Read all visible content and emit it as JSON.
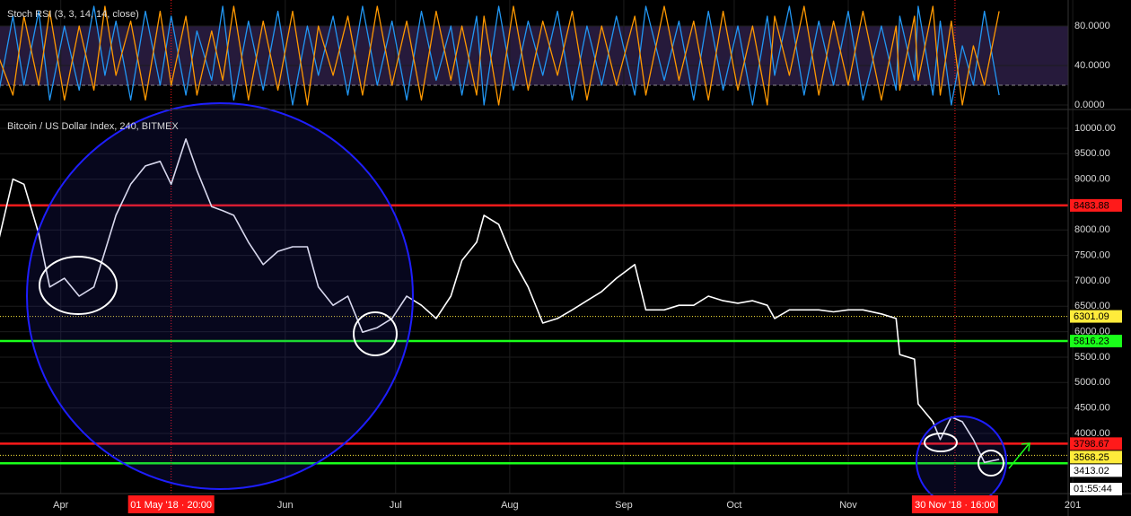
{
  "chart_data": [
    {
      "type": "line",
      "title": "Stoch RSI (3, 3, 14, 14, close)",
      "x": [
        "2018-03-15",
        "2018-03-19",
        "2018-03-22",
        "2018-03-26",
        "2018-03-29",
        "2018-04-02",
        "2018-04-06",
        "2018-04-10",
        "2018-04-13",
        "2018-04-16",
        "2018-04-20",
        "2018-04-24",
        "2018-04-28",
        "2018-05-01",
        "2018-05-05",
        "2018-05-08",
        "2018-05-12",
        "2018-05-15",
        "2018-05-18",
        "2018-05-22",
        "2018-05-26",
        "2018-05-30",
        "2018-06-03",
        "2018-06-07",
        "2018-06-10",
        "2018-06-14",
        "2018-06-18",
        "2018-06-22",
        "2018-06-26",
        "2018-06-30",
        "2018-07-04",
        "2018-07-08",
        "2018-07-12",
        "2018-07-16",
        "2018-07-19",
        "2018-07-23",
        "2018-07-25",
        "2018-07-29",
        "2018-08-02",
        "2018-08-06",
        "2018-08-10",
        "2018-08-14",
        "2018-08-18",
        "2018-08-22",
        "2018-08-26",
        "2018-08-30",
        "2018-09-04",
        "2018-09-07",
        "2018-09-12",
        "2018-09-16",
        "2018-09-20",
        "2018-09-24",
        "2018-09-28",
        "2018-10-02",
        "2018-10-06",
        "2018-10-10",
        "2018-10-12",
        "2018-10-16",
        "2018-10-20",
        "2018-10-24",
        "2018-10-28",
        "2018-11-01",
        "2018-11-05",
        "2018-11-10",
        "2018-11-14",
        "2018-11-15",
        "2018-11-19",
        "2018-11-20",
        "2018-11-24",
        "2018-11-26",
        "2018-11-29",
        "2018-12-02",
        "2018-12-05",
        "2018-12-08",
        "2018-12-12"
      ],
      "series": [
        {
          "color": "#2196f3",
          "values": [
            10,
            90,
            20,
            95,
            5,
            80,
            15,
            100,
            30,
            85,
            5,
            95,
            20,
            90,
            10,
            75,
            25,
            100,
            5,
            85,
            15,
            95,
            0,
            80,
            30,
            90,
            10,
            100,
            20,
            85,
            5,
            95,
            25,
            80,
            10,
            90,
            0,
            100,
            15,
            85,
            30,
            95,
            5,
            80,
            20,
            90,
            10,
            100,
            25,
            85,
            5,
            95,
            15,
            80,
            0,
            90,
            30,
            100,
            10,
            85,
            20,
            95,
            5,
            80,
            15,
            90,
            25,
            100,
            10,
            85,
            0,
            60,
            20,
            95,
            10
          ]
        },
        {
          "color": "#ff9800",
          "values": [
            50,
            10,
            90,
            20,
            95,
            5,
            80,
            15,
            100,
            30,
            85,
            5,
            95,
            20,
            90,
            10,
            75,
            25,
            100,
            5,
            85,
            15,
            95,
            0,
            80,
            30,
            90,
            10,
            100,
            20,
            85,
            5,
            95,
            25,
            80,
            10,
            90,
            0,
            100,
            15,
            85,
            30,
            95,
            5,
            80,
            20,
            90,
            10,
            100,
            25,
            85,
            5,
            95,
            15,
            80,
            0,
            90,
            30,
            100,
            10,
            85,
            20,
            95,
            5,
            80,
            15,
            90,
            25,
            100,
            10,
            85,
            0,
            60,
            20,
            95
          ]
        }
      ],
      "xlim": [
        "2018-03-15",
        "2018-12-31"
      ],
      "ylim": [
        -4.5,
        106.4
      ],
      "yticks": [
        {
          "value": 80,
          "label": "80.0000"
        },
        {
          "value": 40,
          "label": "40.0000"
        },
        {
          "value": 0,
          "label": "0.0000"
        }
      ],
      "band": [
        20,
        80
      ],
      "band_color": "#7e57c2"
    },
    {
      "type": "line",
      "title": "Bitcoin / US Dollar Index, 240, BITMEX",
      "x": [
        "2018-03-15",
        "2018-03-19",
        "2018-03-22",
        "2018-03-26",
        "2018-03-29",
        "2018-04-02",
        "2018-04-06",
        "2018-04-10",
        "2018-04-13",
        "2018-04-16",
        "2018-04-20",
        "2018-04-24",
        "2018-04-28",
        "2018-05-01",
        "2018-05-05",
        "2018-05-08",
        "2018-05-12",
        "2018-05-15",
        "2018-05-18",
        "2018-05-22",
        "2018-05-26",
        "2018-05-30",
        "2018-06-03",
        "2018-06-07",
        "2018-06-10",
        "2018-06-14",
        "2018-06-18",
        "2018-06-22",
        "2018-06-26",
        "2018-06-30",
        "2018-07-04",
        "2018-07-08",
        "2018-07-12",
        "2018-07-16",
        "2018-07-19",
        "2018-07-23",
        "2018-07-25",
        "2018-07-29",
        "2018-08-02",
        "2018-08-06",
        "2018-08-10",
        "2018-08-14",
        "2018-08-18",
        "2018-08-22",
        "2018-08-26",
        "2018-08-30",
        "2018-09-04",
        "2018-09-07",
        "2018-09-12",
        "2018-09-16",
        "2018-09-20",
        "2018-09-24",
        "2018-09-28",
        "2018-10-02",
        "2018-10-06",
        "2018-10-10",
        "2018-10-12",
        "2018-10-16",
        "2018-10-20",
        "2018-10-24",
        "2018-10-28",
        "2018-11-01",
        "2018-11-05",
        "2018-11-10",
        "2018-11-14",
        "2018-11-15",
        "2018-11-19",
        "2018-11-20",
        "2018-11-24",
        "2018-11-26",
        "2018-11-29",
        "2018-12-02",
        "2018-12-05",
        "2018-12-08",
        "2018-12-12"
      ],
      "values": [
        7760,
        9000,
        8900,
        7930,
        6880,
        7050,
        6700,
        6880,
        7580,
        8290,
        8900,
        9260,
        9350,
        8900,
        9790,
        9170,
        8460,
        8380,
        8290,
        7760,
        7320,
        7580,
        7670,
        7670,
        6880,
        6520,
        6700,
        5990,
        6080,
        6260,
        6700,
        6520,
        6260,
        6700,
        7400,
        7760,
        8290,
        8110,
        7400,
        6880,
        6170,
        6260,
        6430,
        6610,
        6790,
        7050,
        7320,
        6430,
        6430,
        6520,
        6520,
        6700,
        6610,
        6560,
        6610,
        6520,
        6260,
        6430,
        6430,
        6430,
        6390,
        6430,
        6430,
        6350,
        6260,
        5550,
        5460,
        4580,
        4230,
        3880,
        4320,
        4230,
        3880,
        3430,
        3490
      ],
      "color": "#ffffff",
      "xlim": [
        "2018-03-15",
        "2018-12-31"
      ],
      "ylim": [
        2817,
        10370
      ],
      "yticks": [
        {
          "value": 10000,
          "label": "10000.00"
        },
        {
          "value": 9500,
          "label": "9500.00"
        },
        {
          "value": 9000,
          "label": "9000.00"
        },
        {
          "value": 8500,
          "label": "8500.00"
        },
        {
          "value": 8000,
          "label": "8000.00"
        },
        {
          "value": 7500,
          "label": "7500.00"
        },
        {
          "value": 7000,
          "label": "7000.00"
        },
        {
          "value": 6500,
          "label": "6500.00"
        },
        {
          "value": 6000,
          "label": "6000.00"
        },
        {
          "value": 5500,
          "label": "5500.00"
        },
        {
          "value": 5000,
          "label": "5000.00"
        },
        {
          "value": 4500,
          "label": "4500.00"
        },
        {
          "value": 4000,
          "label": "4000.00"
        }
      ],
      "xticks": [
        {
          "value": "2018-04-01",
          "label": "Apr"
        },
        {
          "value": "2018-06-01",
          "label": "Jun"
        },
        {
          "value": "2018-07-01",
          "label": "Jul"
        },
        {
          "value": "2018-08-01",
          "label": "Aug"
        },
        {
          "value": "2018-09-01",
          "label": "Sep"
        },
        {
          "value": "2018-10-01",
          "label": "Oct"
        },
        {
          "value": "2018-11-01",
          "label": "Nov"
        },
        {
          "value": "2019-01-01",
          "label": "201"
        }
      ],
      "levels": [
        {
          "value": 8483.88,
          "color": "#ff1a1a",
          "style": "solid"
        },
        {
          "value": 6301.09,
          "color": "#ffeb3b",
          "style": "dotted"
        },
        {
          "value": 5816.23,
          "color": "#1aff1a",
          "style": "solid"
        },
        {
          "value": 3798.67,
          "color": "#ff1a1a",
          "style": "solid"
        },
        {
          "value": 3568.25,
          "color": "#ffeb3b",
          "style": "dotted"
        },
        {
          "value": 3413.02,
          "color": "#1aff1a",
          "style": "solid"
        }
      ],
      "crosshairs": [
        {
          "x": "2018-05-01",
          "label": "01 May '18 · 20:00"
        },
        {
          "x": "2018-11-30",
          "label": "30 Nov '18 · 16:00"
        }
      ],
      "countdown": "01:55:44"
    }
  ]
}
